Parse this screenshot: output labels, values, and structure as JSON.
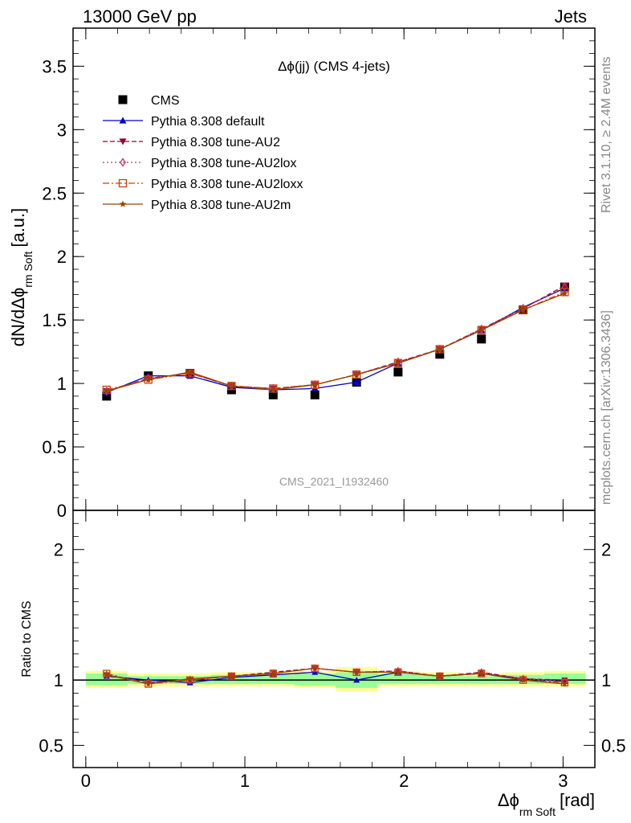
{
  "header": {
    "left": "13000 GeV pp",
    "right": "Jets"
  },
  "side_text": {
    "rivet": "Rivet 3.1.10, ≥ 2.4M events",
    "mcplots": "mcplots.cern.ch [arXiv:1306.3436]"
  },
  "watermark": "CMS_2021_I1932460",
  "chart_data": [
    {
      "type": "scatter",
      "title": "Δϕ(jj) (CMS 4-jets)",
      "ylabel": "dN/dΔϕ",
      "ylabel_sub": "rm Soft",
      "ylabel_unit": "[a.u.]",
      "xlabel": "Δϕ",
      "xlabel_sub": "rm Soft",
      "xlabel_unit": "[rad]",
      "xlim": [
        -0.08,
        3.2
      ],
      "ylim": [
        0,
        3.8
      ],
      "x_ticks": [
        0,
        1,
        2,
        3
      ],
      "y_ticks": [
        0,
        0.5,
        1,
        1.5,
        2,
        2.5,
        3,
        3.5
      ],
      "y_tick_labels": [
        "0",
        "0.5",
        "1",
        "1.5",
        "2",
        "2.5",
        "3",
        "3.5"
      ],
      "legend_position": "top-left",
      "x": [
        0.131,
        0.393,
        0.655,
        0.916,
        1.178,
        1.44,
        1.702,
        1.963,
        2.225,
        2.487,
        2.749,
        3.01
      ],
      "x_bin_edges": [
        0,
        0.262,
        0.524,
        0.785,
        1.047,
        1.309,
        1.571,
        1.833,
        2.094,
        2.356,
        2.618,
        2.88,
        3.142
      ],
      "series": [
        {
          "name": "CMS",
          "color": "#000000",
          "marker": "square",
          "line": "none",
          "values": [
            0.9,
            1.06,
            1.08,
            0.95,
            0.91,
            0.91,
            1.01,
            1.09,
            1.23,
            1.35,
            1.58,
            1.76
          ]
        },
        {
          "name": "Pythia 8.308 default",
          "color": "#0000cc",
          "marker": "triangle-up",
          "line": "solid",
          "values": [
            0.93,
            1.06,
            1.06,
            0.97,
            0.95,
            0.96,
            1.01,
            1.16,
            1.27,
            1.42,
            1.6,
            1.75
          ]
        },
        {
          "name": "Pythia 8.308 tune-AU2",
          "color": "#990033",
          "marker": "triangle-down",
          "line": "dashed",
          "values": [
            0.94,
            1.04,
            1.08,
            0.98,
            0.96,
            0.99,
            1.07,
            1.17,
            1.27,
            1.43,
            1.59,
            1.77
          ]
        },
        {
          "name": "Pythia 8.308 tune-AU2lox",
          "color": "#cc3366",
          "marker": "diamond-open",
          "line": "dotted",
          "values": [
            0.94,
            1.04,
            1.08,
            0.98,
            0.96,
            0.99,
            1.07,
            1.17,
            1.27,
            1.43,
            1.59,
            1.76
          ]
        },
        {
          "name": "Pythia 8.308 tune-AU2loxx",
          "color": "#cc4400",
          "marker": "square-open",
          "line": "dashdot",
          "values": [
            0.95,
            1.03,
            1.08,
            0.98,
            0.96,
            0.99,
            1.07,
            1.16,
            1.27,
            1.42,
            1.58,
            1.72
          ]
        },
        {
          "name": "Pythia 8.308 tune-AU2m",
          "color": "#994400",
          "marker": "star",
          "line": "solid",
          "values": [
            0.94,
            1.03,
            1.09,
            0.98,
            0.95,
            0.99,
            1.07,
            1.16,
            1.27,
            1.42,
            1.58,
            1.71
          ]
        }
      ]
    },
    {
      "type": "line",
      "ylabel": "Ratio to CMS",
      "xlim": [
        -0.08,
        3.2
      ],
      "ylim": [
        0.33,
        2.3
      ],
      "x_ticks": [
        0,
        1,
        2,
        3
      ],
      "y_ticks": [
        0.5,
        1,
        2
      ],
      "y_tick_labels": [
        "0.5",
        "1",
        "2"
      ],
      "uncertainty_bands": {
        "yellow": {
          "color": "#ffff99",
          "lo": [
            0.94,
            0.95,
            0.95,
            0.95,
            0.95,
            0.94,
            0.91,
            0.95,
            0.95,
            0.95,
            0.95,
            0.95
          ],
          "hi": [
            1.07,
            1.05,
            1.05,
            1.06,
            1.06,
            1.07,
            1.1,
            1.07,
            1.06,
            1.05,
            1.06,
            1.07
          ]
        },
        "green": {
          "color": "#99ff99",
          "lo": [
            0.96,
            0.97,
            0.97,
            0.97,
            0.97,
            0.96,
            0.94,
            0.97,
            0.97,
            0.97,
            0.97,
            0.97
          ],
          "hi": [
            1.05,
            1.03,
            1.03,
            1.04,
            1.04,
            1.05,
            1.06,
            1.05,
            1.04,
            1.03,
            1.04,
            1.05
          ]
        }
      },
      "series": [
        {
          "name": "Pythia 8.308 default",
          "color": "#0000cc",
          "line": "solid",
          "marker": "triangle-up",
          "values": [
            1.03,
            1.0,
            0.98,
            1.02,
            1.04,
            1.06,
            1.0,
            1.06,
            1.03,
            1.05,
            1.01,
            0.99
          ]
        },
        {
          "name": "Pythia 8.308 tune-AU2",
          "color": "#990033",
          "line": "dashed",
          "marker": "triangle-down",
          "values": [
            1.04,
            0.98,
            1.0,
            1.03,
            1.06,
            1.09,
            1.06,
            1.07,
            1.03,
            1.06,
            1.01,
            1.0
          ]
        },
        {
          "name": "Pythia 8.308 tune-AU2lox",
          "color": "#cc3366",
          "line": "dotted",
          "marker": "diamond-open",
          "values": [
            1.04,
            0.98,
            1.0,
            1.03,
            1.05,
            1.09,
            1.06,
            1.07,
            1.03,
            1.06,
            1.01,
            0.99
          ]
        },
        {
          "name": "Pythia 8.308 tune-AU2loxx",
          "color": "#cc4400",
          "line": "dashdot",
          "marker": "square-open",
          "values": [
            1.05,
            0.97,
            1.0,
            1.03,
            1.05,
            1.09,
            1.06,
            1.06,
            1.03,
            1.05,
            1.0,
            0.98
          ]
        },
        {
          "name": "Pythia 8.308 tune-AU2m",
          "color": "#994400",
          "line": "solid",
          "marker": "star",
          "values": [
            1.04,
            0.97,
            1.01,
            1.03,
            1.05,
            1.09,
            1.06,
            1.06,
            1.03,
            1.05,
            1.0,
            0.97
          ]
        }
      ]
    }
  ]
}
